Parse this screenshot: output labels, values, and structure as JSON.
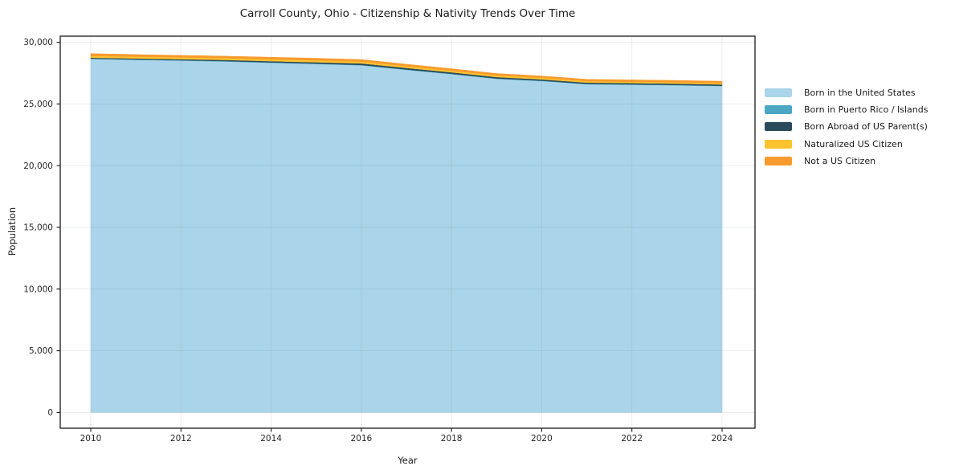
{
  "chart_data": {
    "type": "area",
    "stacked": true,
    "title": "Carroll County, Ohio - Citizenship & Nativity Trends Over Time",
    "xlabel": "Year",
    "ylabel": "Population",
    "x": [
      2010,
      2011,
      2012,
      2013,
      2014,
      2015,
      2016,
      2017,
      2018,
      2019,
      2020,
      2021,
      2022,
      2023,
      2024
    ],
    "xticks": [
      2010,
      2012,
      2014,
      2016,
      2018,
      2020,
      2022,
      2024
    ],
    "ylim": [
      0,
      30000
    ],
    "yticks": [
      0,
      5000,
      10000,
      15000,
      20000,
      25000,
      30000
    ],
    "grid": true,
    "legend_position": "right",
    "series": [
      {
        "name": "Born in the United States",
        "color": "#a9d4e9",
        "values": [
          28650,
          28580,
          28515,
          28445,
          28340,
          28240,
          28130,
          27770,
          27420,
          27040,
          26860,
          26600,
          26560,
          26515,
          26450
        ]
      },
      {
        "name": "Born in Puerto Rico / Islands",
        "color": "#4aa6c2",
        "values": [
          30,
          30,
          30,
          30,
          35,
          35,
          35,
          30,
          30,
          30,
          30,
          30,
          30,
          30,
          30
        ]
      },
      {
        "name": "Born Abroad of US Parent(s)",
        "color": "#2b4a5c",
        "values": [
          70,
          75,
          80,
          90,
          95,
          105,
          120,
          120,
          115,
          110,
          100,
          100,
          100,
          100,
          100
        ]
      },
      {
        "name": "Naturalized US Citizen",
        "color": "#fcc32f",
        "values": [
          150,
          150,
          148,
          145,
          150,
          152,
          150,
          145,
          140,
          140,
          135,
          120,
          110,
          105,
          100
        ]
      },
      {
        "name": "Not a US Citizen",
        "color": "#f89b2e",
        "values": [
          180,
          172,
          165,
          162,
          168,
          170,
          165,
          160,
          152,
          150,
          140,
          150,
          155,
          158,
          160
        ]
      }
    ],
    "colors": {
      "frame": "#1a1a1a",
      "tick_label": "#262626",
      "grid": "#788291"
    }
  }
}
